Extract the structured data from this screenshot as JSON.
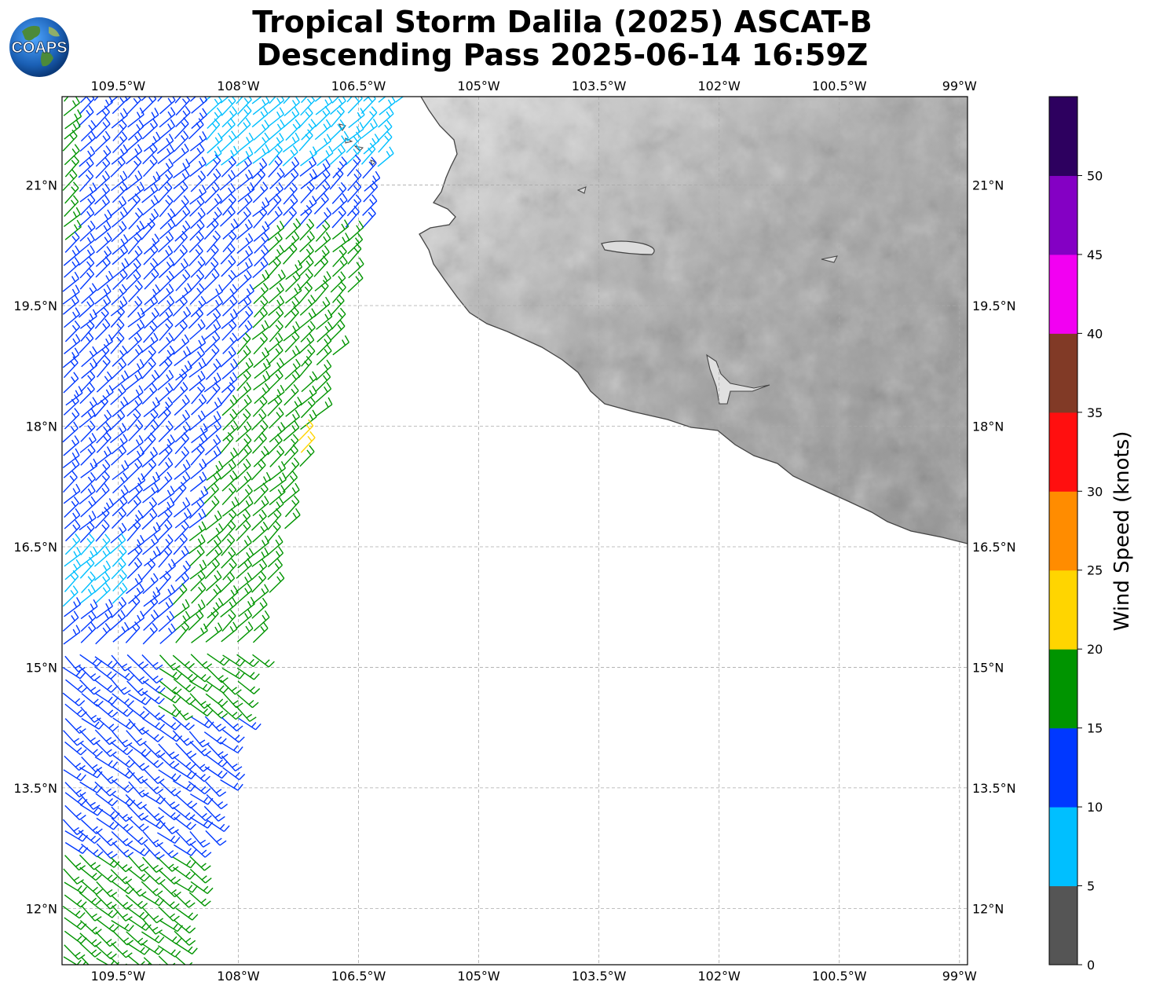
{
  "title": {
    "line1": "Tropical Storm Dalila (2025) ASCAT-B",
    "line2": "Descending Pass 2025-06-14 16:59Z"
  },
  "logo": {
    "text": "COAPS",
    "icon": "globe-icon"
  },
  "map": {
    "lon_range": [
      -110.2,
      -98.9
    ],
    "lat_range": [
      11.3,
      22.1
    ],
    "lon_ticks": [
      -109.5,
      -108,
      -106.5,
      -105,
      -103.5,
      -102,
      -100.5,
      -99
    ],
    "lon_tick_labels": [
      "109.5°W",
      "108°W",
      "106.5°W",
      "105°W",
      "103.5°W",
      "102°W",
      "100.5°W",
      "99°W"
    ],
    "lat_ticks": [
      12,
      13.5,
      15,
      16.5,
      18,
      19.5,
      21
    ],
    "lat_tick_labels": [
      "12°N",
      "13.5°N",
      "15°N",
      "16.5°N",
      "18°N",
      "19.5°N",
      "21°N"
    ],
    "grid": true,
    "land": "grayscale terrain shading",
    "coastline_color": "#444444"
  },
  "colorbar": {
    "label": "Wind Speed (knots)",
    "ticks": [
      "0",
      "5",
      "10",
      "15",
      "20",
      "25",
      "30",
      "35",
      "40",
      "45",
      "50"
    ],
    "colors": [
      "#555555",
      "#00bfff",
      "#0038ff",
      "#009400",
      "#ffd500",
      "#ff8c00",
      "#ff0f0f",
      "#813a26",
      "#f200f2",
      "#8400c4",
      "#2d005f"
    ]
  },
  "wind_barbs": {
    "legend_colors_used": [
      "#00bfff",
      "#0038ff",
      "#009400",
      "#ffd500"
    ],
    "swath": "ASCAT-B descending pass, western edge of map"
  }
}
